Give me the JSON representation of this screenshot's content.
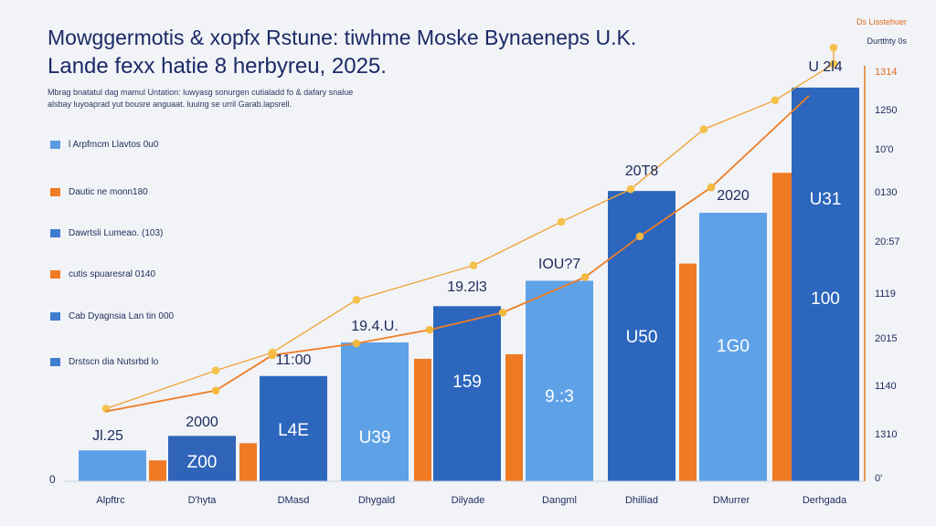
{
  "chart_data": {
    "type": "bar",
    "title": "Mowggermotis & xopfx Rstune: tiwhme Moske Bynaeneps U.K.",
    "subtitle": "Lande fexx hatie 8 herbyreu, 2025.",
    "description": [
      "Mbrag bnatatul dag mamul Untation: luwyasg sonurgen cutialadd fo & dafary snalue",
      "alsbay luyoaprad yut bousre anguaat. luuing se urril Garab.lapsrell."
    ],
    "legend": [
      {
        "label": "l Arpfmcm Llavtos 0u0",
        "color": "#5b9be0"
      },
      {
        "label": "Dautic ne monn180",
        "color": "#f07a24"
      },
      {
        "label": "Dawrtsli Lumeao. (103)",
        "color": "#3f7ccf"
      },
      {
        "label": "cutis spuaresral 0140",
        "color": "#f07a24"
      },
      {
        "label": "Cab Dyagnsia Lan tin 000",
        "color": "#3f7ccf"
      },
      {
        "label": "Drstscn dia Nutsrbd lo",
        "color": "#3f7ccf"
      }
    ],
    "right_legend": {
      "top": "Ds Lisstehuer",
      "sub": "Durtthty 0s"
    },
    "categories": [
      "Alpftrc",
      "D'hyta",
      "DMasd",
      "Dhygald",
      "Dilyade",
      "Dangml",
      "Dhilliad",
      "DMurrer",
      "Derhgada"
    ],
    "series": [
      {
        "values": [
          50,
          0,
          0,
          0,
          0,
          0,
          0,
          0,
          0
        ],
        "color": "#5da0e6"
      },
      {
        "values": [
          34,
          0,
          0,
          0,
          0,
          0,
          0,
          0,
          0
        ],
        "color": "#f07a24"
      },
      {
        "values": [
          0,
          70,
          0,
          0,
          0,
          0,
          0,
          0,
          0
        ],
        "color": "#2f64b9"
      },
      {
        "values": [
          0,
          0,
          115,
          155,
          190,
          215,
          320,
          295,
          435
        ],
        "color": "#2c66bd"
      },
      {
        "values": [
          0,
          0,
          0,
          0,
          0,
          0,
          0,
          0,
          0
        ],
        "color": "#5ea1e7"
      },
      {
        "values": [
          0,
          0,
          64,
          0,
          0,
          0,
          0,
          0,
          0
        ],
        "color": "#f07a24"
      },
      {
        "values": [
          0,
          0,
          0,
          0,
          0,
          0,
          0,
          0,
          0
        ],
        "color": "#f07a24"
      }
    ],
    "bars": [
      {
        "category": "Alpftrc",
        "value": 34,
        "color": "#5da0e6",
        "inner_label": "",
        "top_label": "Jl.25"
      },
      {
        "category": "Alpftrc",
        "value": 23,
        "color": "#f07a24",
        "inner_label": "",
        "top_label": ""
      },
      {
        "category": "D'hyta",
        "value": 50,
        "color": "#2f64b9",
        "inner_label": "Z00",
        "top_label": "2000"
      },
      {
        "category": "D'hyta",
        "value": 42,
        "color": "#f07a24",
        "inner_label": "",
        "top_label": ""
      },
      {
        "category": "DMasd",
        "value": 116,
        "color": "#2c66bd",
        "inner_label": "L4E",
        "top_label": "11:00"
      },
      {
        "category": "Dhygald",
        "value": 153,
        "color": "#5ea1e7",
        "inner_label": "U39",
        "top_label": "19.4.U."
      },
      {
        "category": "Dhygald",
        "value": 135,
        "color": "#f07a24",
        "inner_label": "",
        "top_label": ""
      },
      {
        "category": "Dilyade",
        "value": 193,
        "color": "#2c66bd",
        "inner_label": "159",
        "top_label": "19.2l3"
      },
      {
        "category": "Dilyade",
        "value": 140,
        "color": "#f07a24",
        "inner_label": "",
        "top_label": ""
      },
      {
        "category": "Dangml",
        "value": 221,
        "color": "#5ea1e7",
        "inner_label": "9.:3",
        "top_label": "IOU?7"
      },
      {
        "category": "Dhilliad",
        "value": 320,
        "color": "#2c66bd",
        "inner_label": "U50",
        "top_label": "20T8"
      },
      {
        "category": "Dhilliad",
        "value": 240,
        "color": "#f07a24",
        "inner_label": "",
        "top_label": ""
      },
      {
        "category": "DMurrer",
        "value": 296,
        "color": "#5ea1e7",
        "inner_label": "1G0",
        "top_label": "2020"
      },
      {
        "category": "DMurrer",
        "value": 340,
        "color": "#f07a24",
        "inner_label": "",
        "top_label": ""
      },
      {
        "category": "Derhgada",
        "value": 434,
        "color": "#2c66bd",
        "inner_label": "U31",
        "top_label": "U 2l4"
      },
      {
        "category": "Derhgada",
        "value": 100,
        "color": "#2c66bd",
        "inner_label": "100",
        "top_label": ""
      }
    ],
    "line_series": [
      {
        "name": "Ds Lisstehuer",
        "color": "#f0a030",
        "marker_color": "#f3c24a",
        "values": [
          80,
          122,
          142,
          200,
          238,
          286,
          322,
          388,
          420,
          460,
          478
        ]
      },
      {
        "name": "Durtthty 0s",
        "color": "#ee7d26",
        "marker_color": "#f3b83f",
        "values": [
          77,
          100,
          139,
          152,
          167,
          186,
          225,
          270,
          324,
          425
        ]
      }
    ],
    "y_left_ticks": [
      "0"
    ],
    "y_right_ticks": [
      "1314",
      "1250",
      "10'0",
      "0130",
      "20:57",
      "1119",
      "2015",
      "1140",
      "1310",
      "0'"
    ],
    "grid": false
  }
}
